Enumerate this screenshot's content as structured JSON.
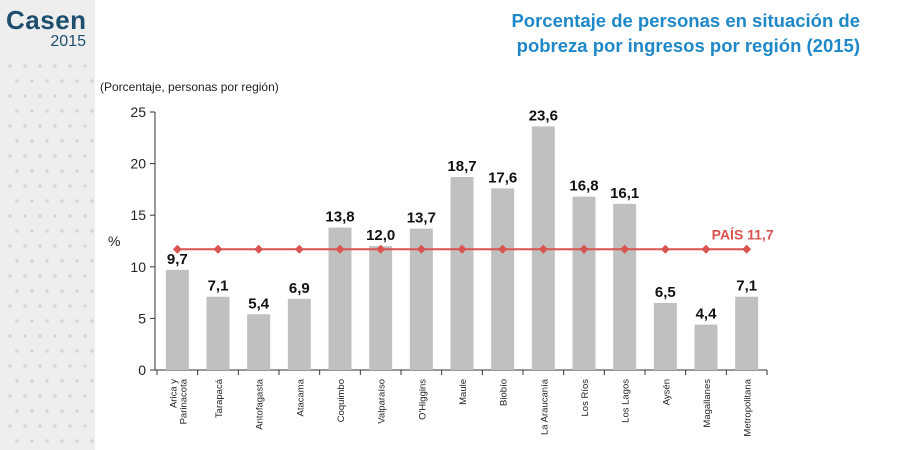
{
  "logo": {
    "name": "Casen",
    "year": "2015"
  },
  "chart_data": {
    "type": "bar",
    "title_lines": [
      "Porcentaje de personas en situación de",
      "pobreza por ingresos por región (2015)"
    ],
    "unit_note": "(Porcentaje, personas por región)",
    "ylabel": "%",
    "ylim": [
      0,
      25
    ],
    "yticks": [
      0,
      5,
      10,
      15,
      20,
      25
    ],
    "categories": [
      "Arica y Parinacota",
      "Tarapacá",
      "Antofagasta",
      "Atacama",
      "Coquimbo",
      "Valparaíso",
      "O'Higgins",
      "Maule",
      "Biobío",
      "La Araucanía",
      "Los Ríos",
      "Los Lagos",
      "Aysén",
      "Magallanes",
      "Metropolitana"
    ],
    "category_lines": [
      [
        "Arica y",
        "Parinacota"
      ],
      [
        "Tarapacá"
      ],
      [
        "Antofagasta"
      ],
      [
        "Atacama"
      ],
      [
        "Coquimbo"
      ],
      [
        "Valparaíso"
      ],
      [
        "O'Higgins"
      ],
      [
        "Maule"
      ],
      [
        "Biobío"
      ],
      [
        "La Araucanía"
      ],
      [
        "Los Ríos"
      ],
      [
        "Los Lagos"
      ],
      [
        "Aysén"
      ],
      [
        "Magallanes"
      ],
      [
        "Metropolitana"
      ]
    ],
    "series": [
      {
        "values": [
          9.7,
          7.1,
          5.4,
          6.9,
          13.8,
          12.0,
          13.7,
          18.7,
          17.6,
          23.6,
          16.8,
          16.1,
          6.5,
          4.4,
          7.1
        ],
        "color": "#c0c0c0"
      }
    ],
    "value_labels": [
      "9,7",
      "7,1",
      "5,4",
      "6,9",
      "13,8",
      "12,0",
      "13,7",
      "18,7",
      "17,6",
      "23,6",
      "16,8",
      "16,1",
      "6,5",
      "4,4",
      "7,1"
    ],
    "reference_line": {
      "label": "PAÍS 11,7",
      "value": 11.7,
      "color": "#d9534f"
    },
    "grid": false,
    "legend": "none"
  }
}
